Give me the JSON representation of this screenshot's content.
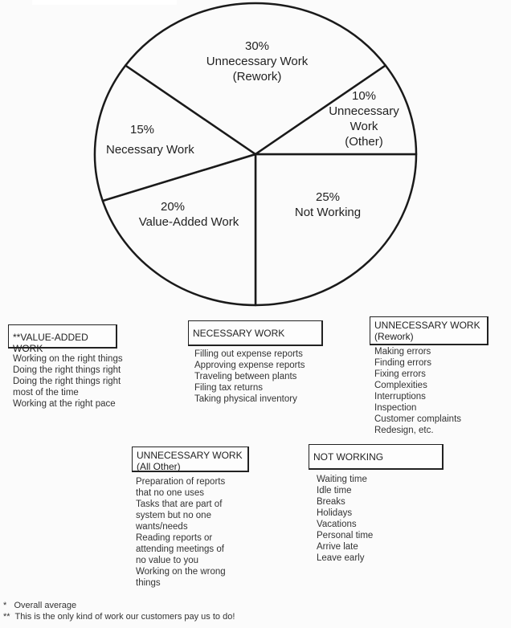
{
  "chart_data": {
    "type": "pie",
    "slices": [
      {
        "label": "Not Working",
        "value": 25,
        "text": "25%"
      },
      {
        "label": "Value-Added Work",
        "value": 20,
        "text": "20%"
      },
      {
        "label": "Necessary Work",
        "value": 15,
        "text": "15%"
      },
      {
        "label": "Unnecessary Work (Rework)",
        "value": 30,
        "text": "30%"
      },
      {
        "label": "Unnecessary Work (Other)",
        "value": 10,
        "text": "10%"
      }
    ],
    "colors": {
      "fill": "#fbfbfb",
      "stroke": "#1a1a1a"
    }
  },
  "labels": {
    "rework": [
      "30%",
      "Unnecessary Work",
      "(Rework)"
    ],
    "other": [
      "10%",
      "Unnecessary",
      "Work",
      "(Other)"
    ],
    "necessary": [
      "15%",
      "Necessary Work"
    ],
    "value_added": [
      "20%",
      "Value-Added Work"
    ],
    "not_working": [
      "25%",
      "Not Working"
    ]
  },
  "boxes": {
    "value_added": {
      "title": "**VALUE-ADDED WORK",
      "items": [
        "Working on the right things",
        "Doing the right things right",
        "Doing the right things right",
        "most of the time",
        "Working at the right pace"
      ]
    },
    "necessary": {
      "title": "NECESSARY WORK",
      "items": [
        "Filling out expense reports",
        "Approving expense reports",
        "Traveling between plants",
        "Filing tax returns",
        "Taking physical inventory"
      ]
    },
    "rework": {
      "title": "UNNECESSARY WORK",
      "subtitle": "(Rework)",
      "items": [
        "Making errors",
        "Finding errors",
        "Fixing errors",
        "Complexities",
        "Interruptions",
        "Inspection",
        "Customer complaints",
        "Redesign, etc."
      ]
    },
    "other": {
      "title": "UNNECESSARY WORK",
      "subtitle": "(All Other)",
      "items": [
        "Preparation of reports",
        "that no one uses",
        "Tasks that are part of",
        "system but no one",
        "wants/needs",
        "Reading reports or",
        "attending meetings of",
        "no value to you",
        "Working on the wrong",
        "things"
      ]
    },
    "not_working": {
      "title": "NOT WORKING",
      "items": [
        "Waiting time",
        "Idle time",
        "Breaks",
        "Holidays",
        "Vacations",
        "Personal time",
        "Arrive late",
        "Leave early"
      ]
    }
  },
  "footnotes": [
    "*   Overall average",
    "**  This is the only kind of work our customers pay us to do!"
  ]
}
